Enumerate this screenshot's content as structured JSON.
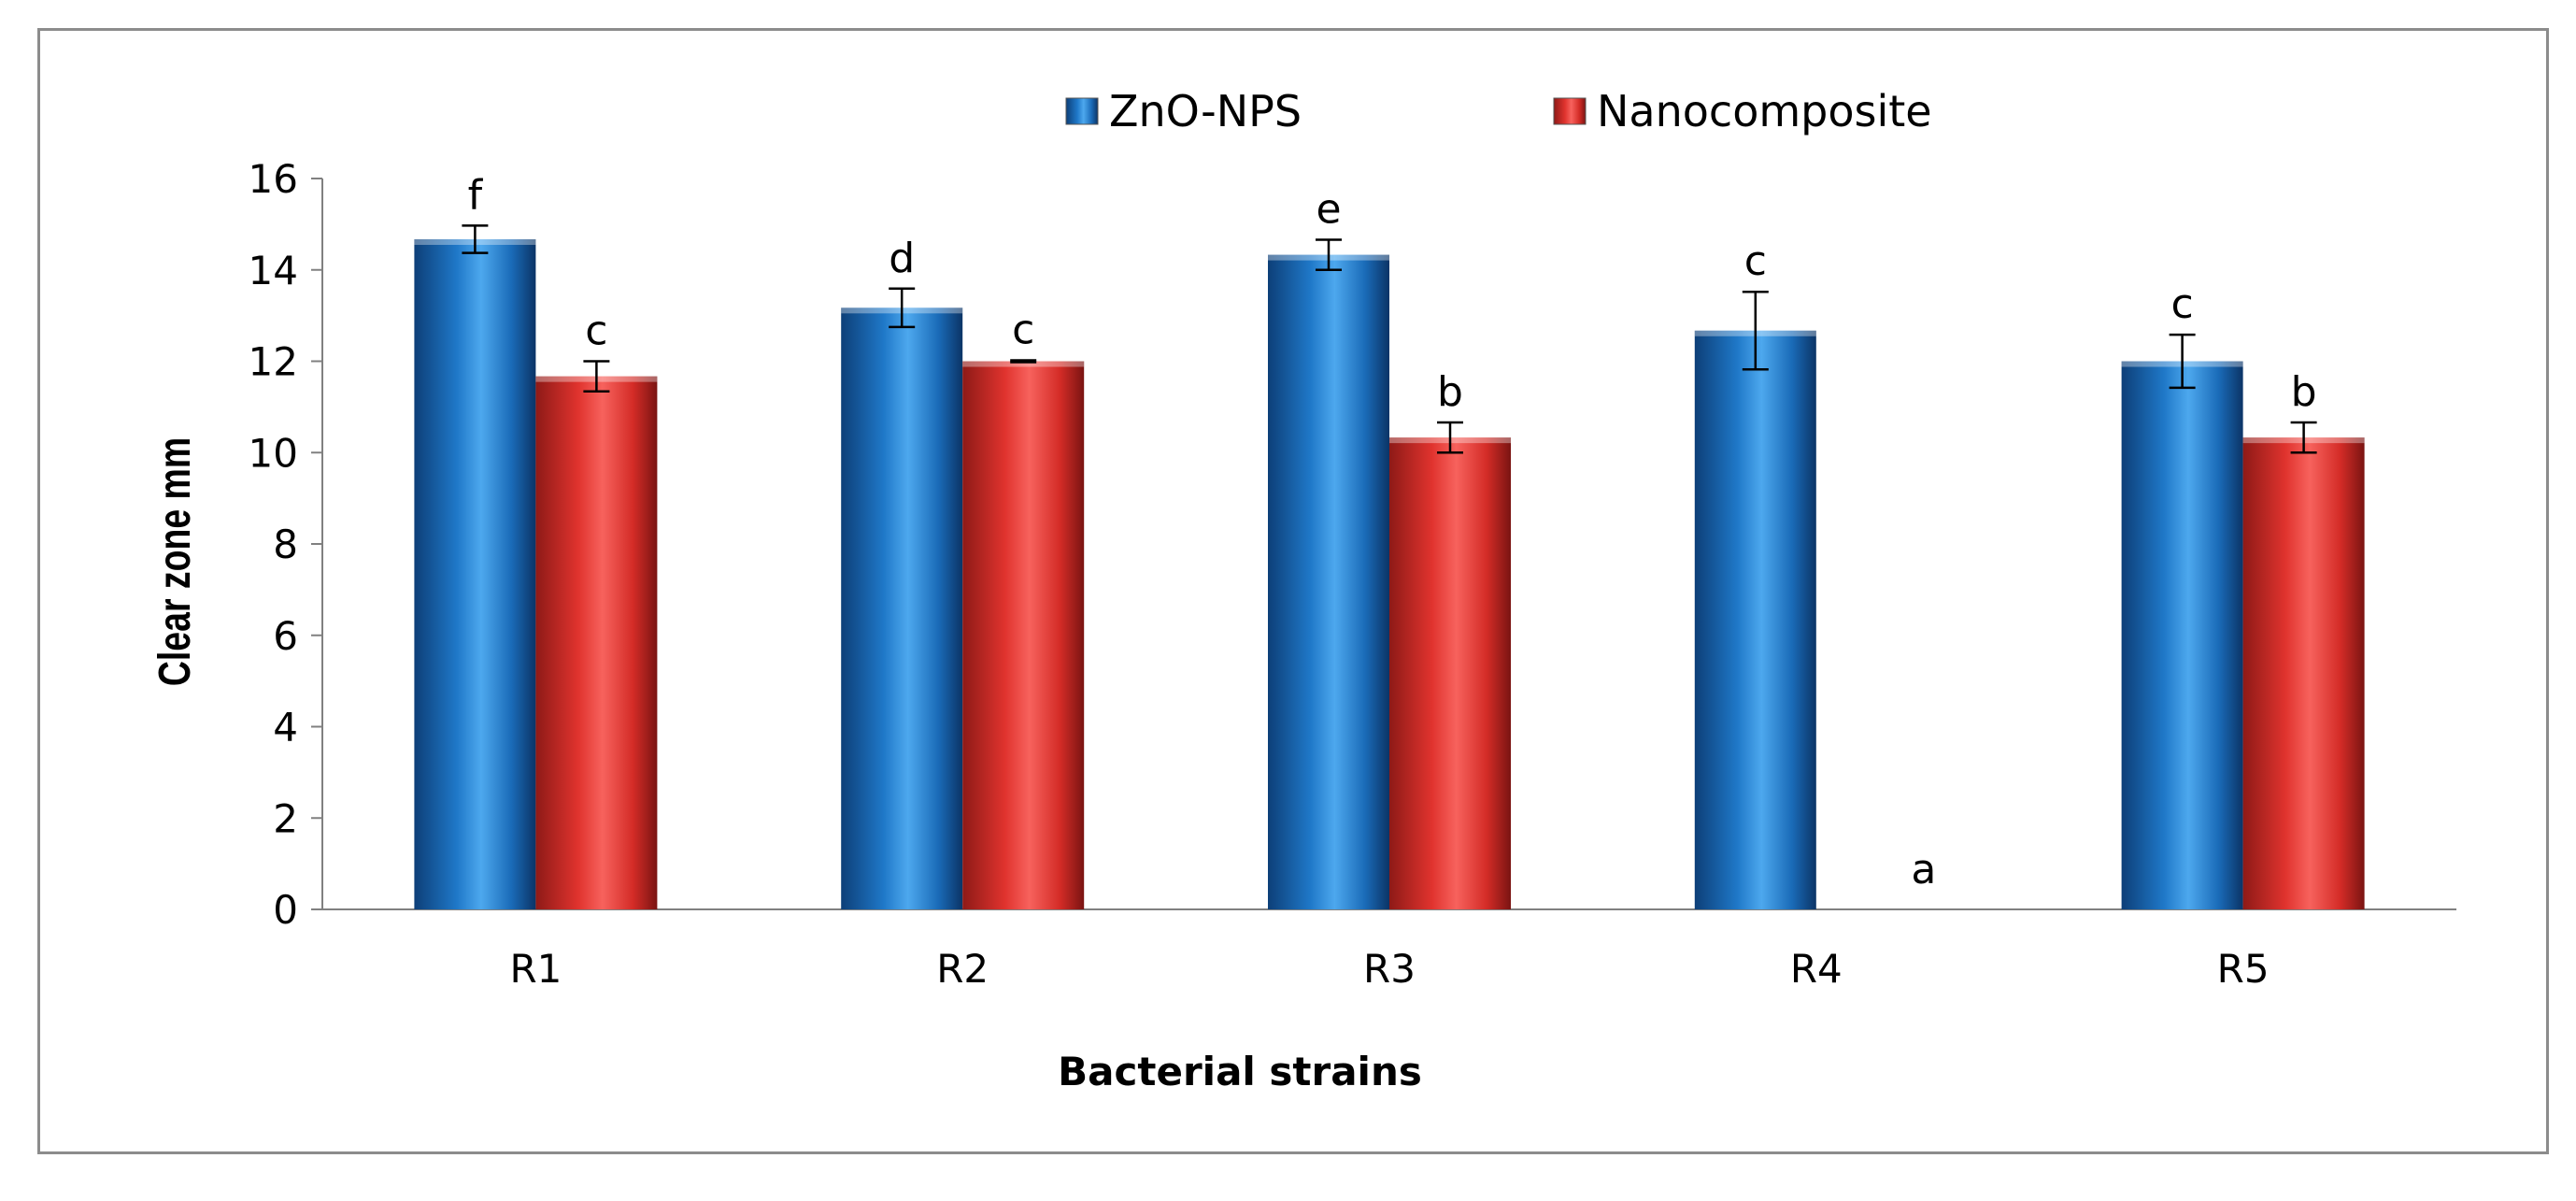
{
  "chart_data": {
    "type": "bar",
    "title": "",
    "xlabel": "Bacterial strains",
    "ylabel": "Clear zone mm",
    "ylim": [
      0,
      16
    ],
    "yticks": [
      0,
      2,
      4,
      6,
      8,
      10,
      12,
      14,
      16
    ],
    "categories": [
      "R1",
      "R2",
      "R3",
      "R4",
      "R5"
    ],
    "legend_position": "top-center",
    "series": [
      {
        "name": "ZnO-NPS",
        "color": "#1f78c8",
        "values": [
          14.67,
          13.17,
          14.33,
          12.67,
          12.0
        ],
        "errors": [
          0.3,
          0.42,
          0.33,
          0.85,
          0.58
        ],
        "letters": [
          "f",
          "d",
          "e",
          "c",
          "c"
        ]
      },
      {
        "name": "Nanocomposite",
        "color": "#e8403c",
        "values": [
          11.67,
          12.0,
          10.33,
          0,
          10.33
        ],
        "errors": [
          0.33,
          0.02,
          0.33,
          0,
          0.33
        ],
        "letters": [
          "c",
          "c",
          "b",
          "a",
          "b"
        ]
      }
    ]
  }
}
